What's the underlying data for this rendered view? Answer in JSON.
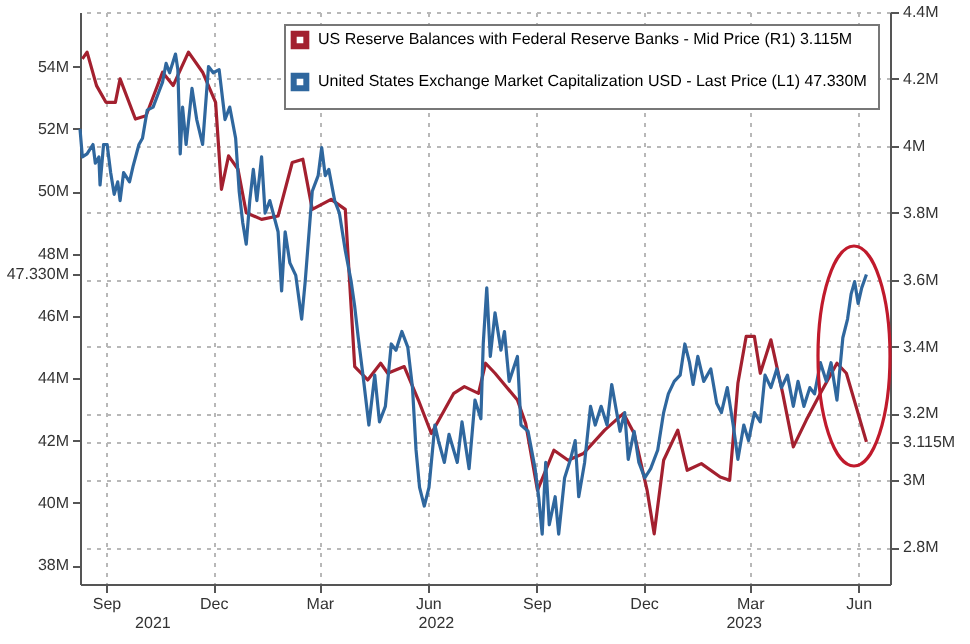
{
  "chart_data": {
    "type": "line",
    "x": [
      "2021-08-10",
      "2021-08-12",
      "2021-08-16",
      "2021-08-21",
      "2021-08-23",
      "2021-08-26",
      "2021-08-27",
      "2021-08-30",
      "2021-09-02",
      "2021-09-05",
      "2021-09-08",
      "2021-09-11",
      "2021-09-13",
      "2021-09-16",
      "2021-09-21",
      "2021-09-24",
      "2021-09-29",
      "2021-10-02",
      "2021-10-06",
      "2021-10-11",
      "2021-10-16",
      "2021-10-19",
      "2021-10-22",
      "2021-10-25",
      "2021-10-30",
      "2021-11-01",
      "2021-11-03",
      "2021-11-05",
      "2021-11-08",
      "2021-11-13",
      "2021-11-17",
      "2021-11-22",
      "2021-11-27",
      "2021-12-01",
      "2021-12-06",
      "2021-12-11",
      "2021-12-15",
      "2021-12-20",
      "2021-12-23",
      "2021-12-26",
      "2021-12-29",
      "2022-01-01",
      "2022-01-04",
      "2022-01-07",
      "2022-01-11",
      "2022-01-14",
      "2022-01-18",
      "2022-01-25",
      "2022-01-28",
      "2022-01-31",
      "2022-02-04",
      "2022-02-09",
      "2022-02-14",
      "2022-02-17",
      "2022-02-23",
      "2022-02-28",
      "2022-03-03",
      "2022-03-06",
      "2022-03-09",
      "2022-03-14",
      "2022-03-18",
      "2022-03-23",
      "2022-03-28",
      "2022-03-31",
      "2022-04-03",
      "2022-04-07",
      "2022-04-12",
      "2022-04-17",
      "2022-04-21",
      "2022-04-26",
      "2022-05-01",
      "2022-05-05",
      "2022-05-10",
      "2022-05-15",
      "2022-05-19",
      "2022-05-22",
      "2022-05-25",
      "2022-05-29",
      "2022-06-02",
      "2022-06-07",
      "2022-06-10",
      "2022-06-15",
      "2022-06-19",
      "2022-06-26",
      "2022-06-30",
      "2022-07-06",
      "2022-07-11",
      "2022-07-16",
      "2022-07-18",
      "2022-07-21",
      "2022-07-24",
      "2022-07-28",
      "2022-08-02",
      "2022-08-05",
      "2022-08-09",
      "2022-08-16",
      "2022-08-19",
      "2022-08-25",
      "2022-08-31",
      "2022-09-03",
      "2022-09-06",
      "2022-09-09",
      "2022-09-12",
      "2022-09-17",
      "2022-09-20",
      "2022-09-25",
      "2022-09-30",
      "2022-10-04",
      "2022-10-07",
      "2022-10-12",
      "2022-10-17",
      "2022-10-21",
      "2022-10-26",
      "2022-10-31",
      "2022-11-04",
      "2022-11-11",
      "2022-11-15",
      "2022-11-18",
      "2022-11-23",
      "2022-11-27",
      "2022-12-02",
      "2022-12-07",
      "2022-12-13",
      "2022-12-18",
      "2022-12-22",
      "2022-12-27",
      "2023-01-01",
      "2023-01-05",
      "2023-01-09",
      "2023-01-12",
      "2023-01-16",
      "2023-01-21",
      "2023-01-27",
      "2023-02-01",
      "2023-02-05",
      "2023-02-10",
      "2023-02-15",
      "2023-02-19",
      "2023-02-24",
      "2023-02-28",
      "2023-03-05",
      "2023-03-10",
      "2023-03-14",
      "2023-03-19",
      "2023-03-24",
      "2023-03-28",
      "2023-04-02",
      "2023-04-07",
      "2023-04-11",
      "2023-04-16",
      "2023-04-21",
      "2023-04-25",
      "2023-04-30",
      "2023-05-05",
      "2023-05-09",
      "2023-05-14",
      "2023-05-19",
      "2023-05-23",
      "2023-05-26",
      "2023-05-29",
      "2023-06-01",
      "2023-06-04",
      "2023-06-08"
    ],
    "series": [
      {
        "name": "US Reserve Balances with Federal Reserve Banks - Mid Price (R1)  3.115M",
        "color": "#a3202f",
        "axis": "y2",
        "x": [
          "2021-08-12",
          "2021-08-16",
          "2021-08-24",
          "2021-09-01",
          "2021-09-09",
          "2021-09-13",
          "2021-09-26",
          "2021-10-05",
          "2021-10-19",
          "2021-10-28",
          "2021-11-10",
          "2021-11-22",
          "2021-12-03",
          "2021-12-08",
          "2021-12-14",
          "2021-12-22",
          "2021-12-29",
          "2022-01-11",
          "2022-01-25",
          "2022-02-06",
          "2022-02-15",
          "2022-02-23",
          "2022-03-11",
          "2022-03-23",
          "2022-03-31",
          "2022-04-11",
          "2022-04-22",
          "2022-04-28",
          "2022-05-12",
          "2022-05-24",
          "2022-06-04",
          "2022-06-23",
          "2022-07-02",
          "2022-07-14",
          "2022-07-20",
          "2022-07-28",
          "2022-08-16",
          "2022-08-23",
          "2022-09-02",
          "2022-09-16",
          "2022-09-28",
          "2022-10-11",
          "2022-10-29",
          "2022-11-14",
          "2022-11-23",
          "2022-12-04",
          "2022-12-10",
          "2022-12-18",
          "2022-12-30",
          "2023-01-07",
          "2023-01-19",
          "2023-02-04",
          "2023-02-12",
          "2023-02-19",
          "2023-02-26",
          "2023-03-05",
          "2023-03-10",
          "2023-03-19",
          "2023-03-29",
          "2023-04-07",
          "2023-04-18",
          "2023-04-30",
          "2023-05-14",
          "2023-05-22",
          "2023-06-08"
        ],
        "values": [
          4.26,
          4.28,
          4.18,
          4.13,
          4.13,
          4.2,
          4.08,
          4.09,
          4.22,
          4.18,
          4.28,
          4.22,
          4.13,
          3.87,
          3.97,
          3.93,
          3.8,
          3.78,
          3.79,
          3.95,
          3.96,
          3.81,
          3.84,
          3.81,
          3.34,
          3.3,
          3.35,
          3.32,
          3.34,
          3.24,
          3.14,
          3.26,
          3.28,
          3.26,
          3.35,
          3.32,
          3.24,
          3.17,
          2.97,
          3.09,
          3.06,
          3.08,
          3.15,
          3.2,
          3.14,
          2.97,
          2.84,
          3.06,
          3.15,
          3.03,
          3.05,
          3.01,
          3.0,
          3.29,
          3.43,
          3.43,
          3.32,
          3.42,
          3.26,
          3.1,
          3.18,
          3.26,
          3.35,
          3.32,
          3.115
        ]
      },
      {
        "name": "United States Exchange Market Capitalization USD - Last Price (L1)  47.330M",
        "color": "#2f679e",
        "values": [
          52.0,
          51.1,
          51.2,
          51.5,
          50.9,
          51.1,
          50.2,
          51.5,
          51.5,
          50.6,
          49.9,
          50.3,
          49.7,
          50.6,
          50.3,
          50.8,
          51.5,
          51.7,
          52.6,
          52.7,
          53.2,
          53.5,
          54.1,
          53.8,
          54.4,
          53.9,
          51.2,
          52.7,
          51.5,
          53.3,
          52.3,
          51.5,
          54.0,
          53.8,
          53.9,
          52.3,
          52.7,
          51.7,
          50.0,
          49.0,
          48.3,
          49.7,
          50.7,
          49.7,
          51.1,
          49.3,
          49.7,
          48.7,
          46.8,
          48.7,
          47.7,
          47.3,
          45.9,
          47.1,
          50.0,
          50.5,
          51.4,
          50.5,
          50.7,
          49.7,
          49.3,
          48.1,
          47.1,
          46.3,
          45.3,
          44.1,
          42.5,
          44.1,
          42.6,
          43.1,
          45.1,
          44.9,
          45.5,
          45.0,
          43.7,
          41.7,
          40.5,
          39.9,
          40.5,
          42.5,
          42.0,
          41.3,
          42.2,
          41.3,
          42.6,
          41.1,
          43.3,
          42.7,
          45.1,
          46.9,
          44.7,
          46.1,
          44.9,
          45.5,
          43.9,
          44.7,
          42.5,
          42.3,
          41.1,
          40.2,
          39.0,
          41.3,
          39.3,
          40.2,
          39.0,
          40.8,
          41.4,
          42.0,
          40.2,
          41.3,
          43.1,
          42.5,
          43.1,
          42.5,
          43.8,
          42.3,
          42.9,
          41.4,
          42.3,
          41.3,
          40.8,
          41.1,
          41.7,
          42.9,
          43.5,
          43.9,
          44.1,
          45.1,
          44.5,
          43.8,
          44.7,
          43.9,
          44.3,
          43.2,
          42.9,
          43.7,
          42.5,
          41.4,
          42.5,
          42.0,
          42.9,
          42.6,
          44.1,
          43.7,
          44.3,
          43.7,
          44.1,
          43.1,
          43.9,
          43.1,
          43.7,
          43.5,
          44.5,
          43.9,
          44.5,
          43.3,
          45.3,
          45.9,
          46.7,
          47.1,
          46.4,
          46.9,
          47.33
        ]
      }
    ],
    "xlim": [
      "2021-08-10",
      "2023-06-28"
    ],
    "xticks": [
      {
        "value": "2021-09-01",
        "label": "Sep"
      },
      {
        "value": "2021-12-01",
        "label": "Dec"
      },
      {
        "value": "2022-03-01",
        "label": "Mar"
      },
      {
        "value": "2022-06-01",
        "label": "Jun"
      },
      {
        "value": "2022-09-01",
        "label": "Sep"
      },
      {
        "value": "2022-12-01",
        "label": "Dec"
      },
      {
        "value": "2023-03-01",
        "label": "Mar"
      },
      {
        "value": "2023-06-01",
        "label": "Jun"
      }
    ],
    "ylim": [
      37.4,
      55.75
    ],
    "yticks": [
      {
        "value": 38,
        "label": "38M"
      },
      {
        "value": 40,
        "label": "40M"
      },
      {
        "value": 42,
        "label": "42M"
      },
      {
        "value": 44,
        "label": "44M"
      },
      {
        "value": 46,
        "label": "46M"
      },
      {
        "value": 47.33,
        "label": "47.330M"
      },
      {
        "value": 48,
        "label": "48M"
      },
      {
        "value": 50,
        "label": "50M"
      },
      {
        "value": 52,
        "label": "52M"
      },
      {
        "value": 54,
        "label": "54M"
      }
    ],
    "y2lim": [
      2.69,
      4.4
    ],
    "y2ticks": [
      {
        "value": 2.8,
        "label": "2.8M"
      },
      {
        "value": 3,
        "label": "3M"
      },
      {
        "value": 3.115,
        "label": "3.115M"
      },
      {
        "value": 3.2,
        "label": "3.2M"
      },
      {
        "value": 3.4,
        "label": "3.4M"
      },
      {
        "value": 3.6,
        "label": "3.6M"
      },
      {
        "value": 3.8,
        "label": "3.8M"
      },
      {
        "value": 4,
        "label": "4M"
      },
      {
        "value": 4.2,
        "label": "4.2M"
      },
      {
        "value": 4.4,
        "label": "4.4M"
      }
    ],
    "annotations": [
      "2021",
      "2022",
      "2023"
    ],
    "grid": true,
    "legend": "top right",
    "line_style": "solid"
  }
}
